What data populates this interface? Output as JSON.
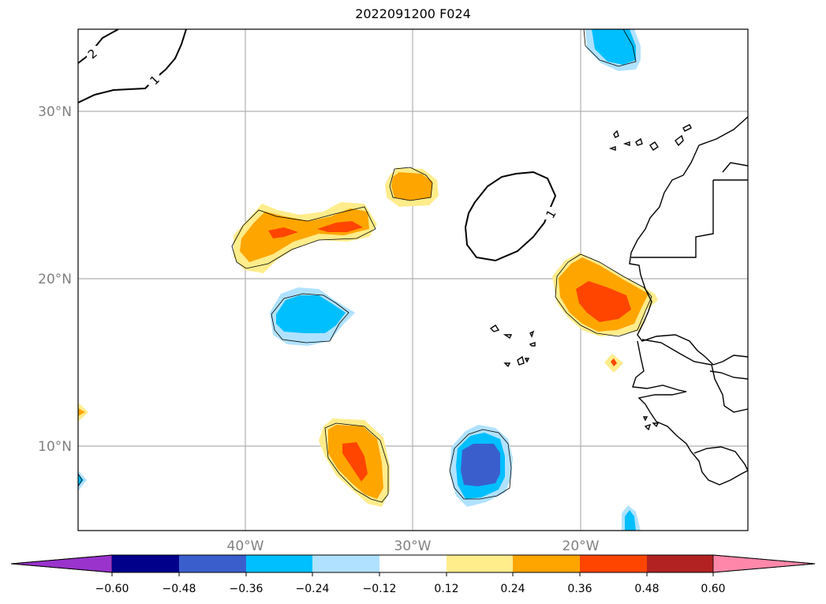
{
  "title": "2022091200 F024",
  "map": {
    "lat_labels": [
      "30°N",
      "20°N",
      "10°N"
    ],
    "lon_labels": [
      "40°W",
      "30°W",
      "20°W"
    ],
    "contour_labels": [
      "2",
      "1",
      "1"
    ]
  },
  "colorbar": {
    "colors": [
      "#9933cc",
      "#00008b",
      "#3a5fcd",
      "#00bfff",
      "#b0e2ff",
      "#ffffff",
      "#ffec8b",
      "#ffa500",
      "#ff4500",
      "#b22222",
      "#ff88aa"
    ],
    "tick_labels": [
      "−0.60",
      "−0.48",
      "−0.36",
      "−0.24",
      "−0.12",
      "0.12",
      "0.24",
      "0.36",
      "0.48",
      "0.60"
    ]
  }
}
